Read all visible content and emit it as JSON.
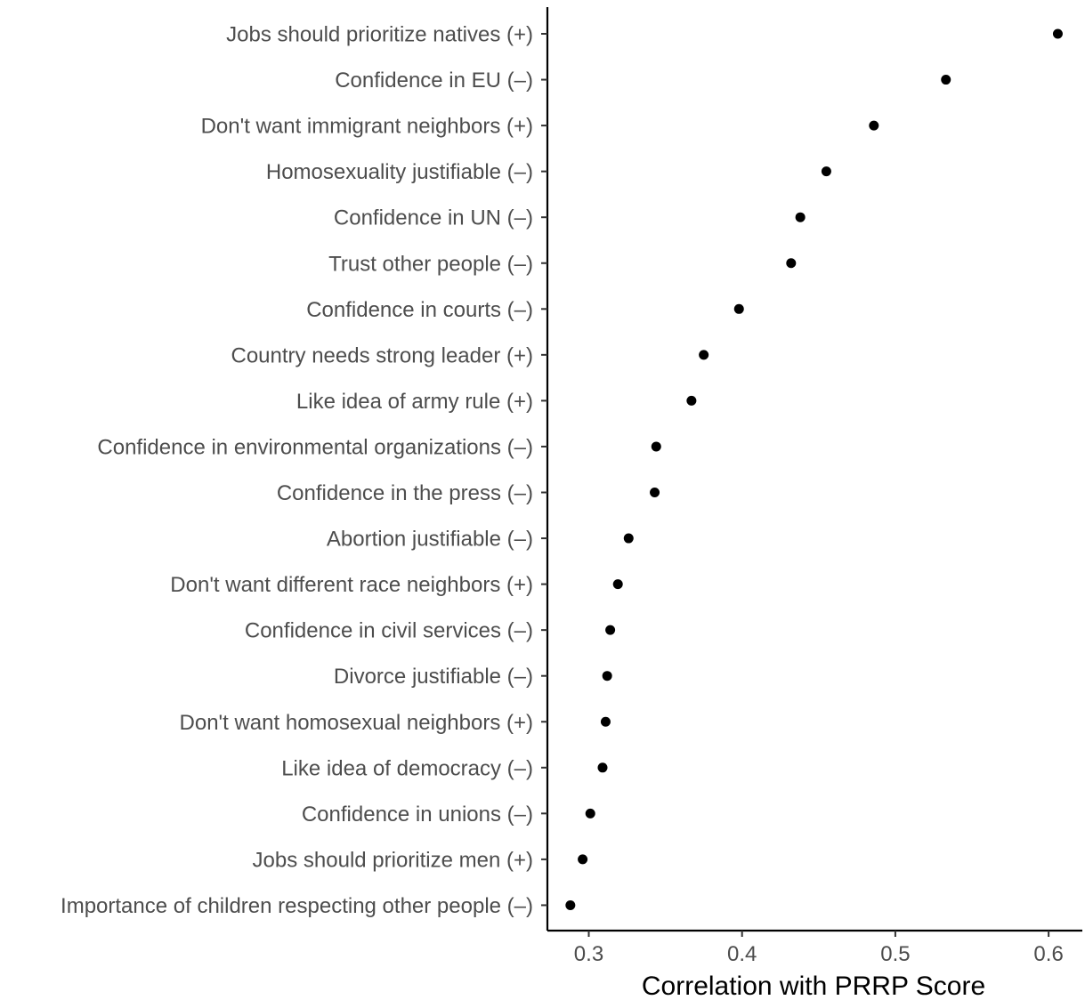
{
  "chart_data": {
    "type": "scatter",
    "orientation": "horizontal-dot-plot",
    "xlabel": "Correlation with PRRP Score",
    "ylabel": "",
    "xlim": [
      0.273,
      0.622
    ],
    "xticks": [
      0.3,
      0.4,
      0.5,
      0.6
    ],
    "xtick_labels": [
      "0.3",
      "0.4",
      "0.5",
      "0.6"
    ],
    "grid": false,
    "legend": "none",
    "point_color": "#000000",
    "categories": [
      "Jobs should prioritize natives (+)",
      "Confidence in EU (–)",
      "Don't want immigrant neighbors  (+)",
      "Homosexuality justifiable (–)",
      "Confidence in UN (–)",
      "Trust other people  (–)",
      "Confidence in courts (–)",
      "Country needs strong leader  (+)",
      "Like idea of army rule (+)",
      "Confidence in environmental organizations (–)",
      "Confidence in the press (–)",
      "Abortion justifiable (–)",
      "Don't want different race neighbors (+)",
      "Confidence in civil services (–)",
      "Divorce justifiable (–)",
      "Don't want homosexual neighbors (+)",
      "Like idea of democracy (–)",
      "Confidence in unions (–)",
      "Jobs should prioritize men (+)",
      "Importance of children respecting other people (–)"
    ],
    "values": [
      0.606,
      0.533,
      0.486,
      0.455,
      0.438,
      0.432,
      0.398,
      0.375,
      0.367,
      0.344,
      0.343,
      0.326,
      0.319,
      0.314,
      0.312,
      0.311,
      0.309,
      0.301,
      0.296,
      0.288
    ]
  }
}
